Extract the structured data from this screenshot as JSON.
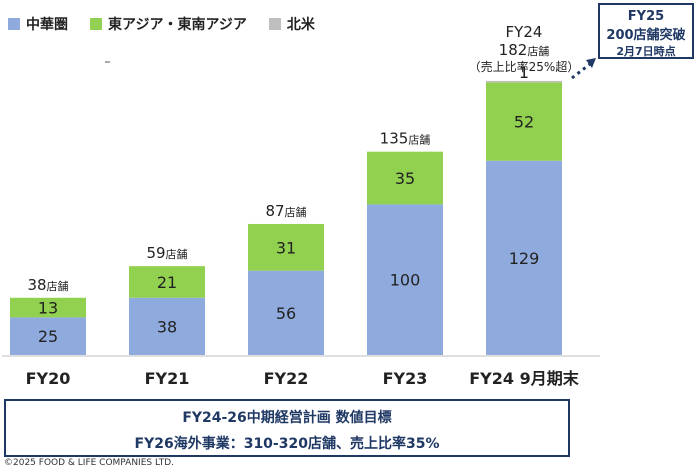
{
  "legend": [
    {
      "label": "中華圏",
      "color": "#8faadc"
    },
    {
      "label": "東アジア・東南アジア",
      "color": "#92d050"
    },
    {
      "label": "北米",
      "color": "#bfbfbf"
    }
  ],
  "chart_data": {
    "type": "bar",
    "stacked": true,
    "categories": [
      "FY20",
      "FY21",
      "FY22",
      "FY23",
      "FY24 9月期末"
    ],
    "series": [
      {
        "name": "中華圏",
        "values": [
          25,
          38,
          56,
          100,
          129
        ],
        "color": "#8faadc"
      },
      {
        "name": "東アジア・東南アジア",
        "values": [
          13,
          21,
          31,
          35,
          52
        ],
        "color": "#92d050"
      },
      {
        "name": "北米",
        "values": [
          0,
          0,
          0,
          0,
          1
        ],
        "color": "#bfbfbf"
      }
    ],
    "totals": [
      {
        "value": "38",
        "unit": "店舗"
      },
      {
        "value": "59",
        "unit": "店舗"
      },
      {
        "value": "87",
        "unit": "店舗"
      },
      {
        "value": "135",
        "unit": "店舗"
      },
      {
        "value": "182",
        "unit": "店舗"
      }
    ],
    "fy24_header": "FY24",
    "fy24_note": "（売上比率25%超）",
    "ylim": [
      0,
      200
    ]
  },
  "callout": {
    "line1": "FY25",
    "line2": "200店舗突破",
    "line3": "2月7日時点",
    "border_color": "#1f3864"
  },
  "plan": {
    "line1": "FY24-26中期経営計画 数値目標",
    "line2": "FY26海外事業：310-320店舗、売上比率35%",
    "color": "#1f3864"
  },
  "copyright": "©2025 FOOD & LIFE COMPANIES LTD."
}
